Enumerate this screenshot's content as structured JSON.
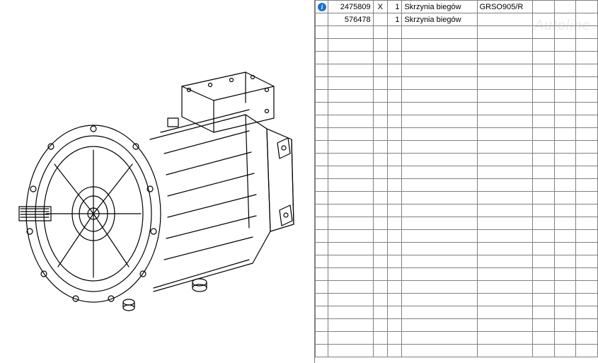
{
  "watermark": "Autoline",
  "table": {
    "rows": [
      {
        "icon": "info",
        "partno": "2475809",
        "flag": "X",
        "qty": "1",
        "desc": "Skrzynia biegów",
        "model": "GRSO905/R"
      },
      {
        "icon": "",
        "partno": "576478",
        "flag": "",
        "qty": "1",
        "desc": "Skrzynia biegów",
        "model": ""
      }
    ],
    "empty_rows": 26
  },
  "colors": {
    "border": "#808080",
    "info_bg": "#1e70cd",
    "info_fg": "#ffffff",
    "line": "#000000"
  }
}
